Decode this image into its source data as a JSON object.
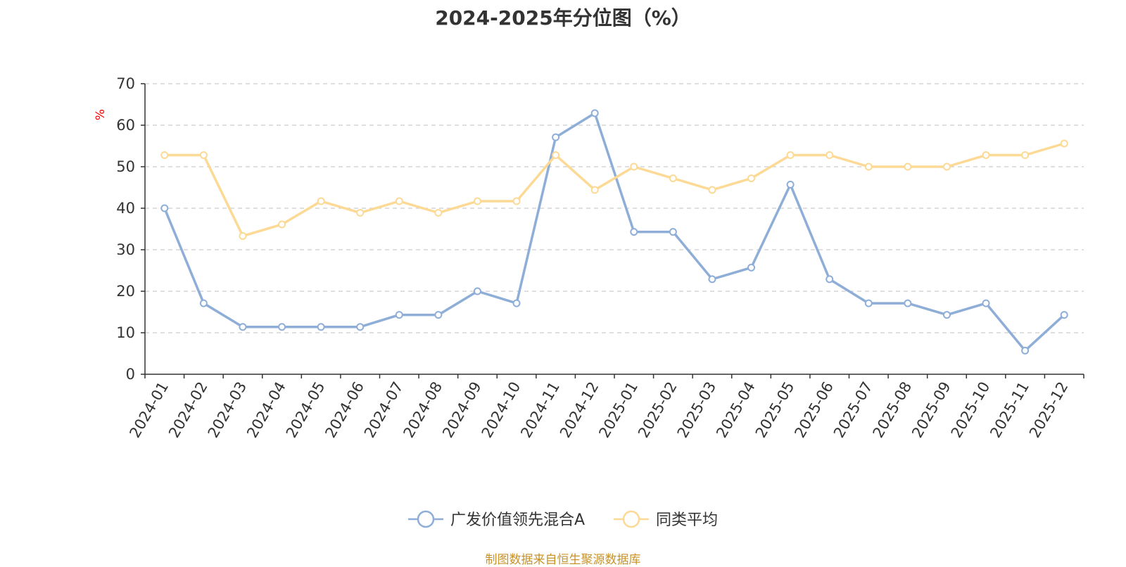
{
  "chart_data": {
    "type": "line",
    "title": "2024-2025年分位图（%）",
    "ylabel": "%",
    "xlabel": "",
    "ylim": [
      0,
      70
    ],
    "yticks": [
      0,
      10,
      20,
      30,
      40,
      50,
      60,
      70
    ],
    "grid": true,
    "legend_position": "bottom-center",
    "categories": [
      "2024-01",
      "2024-02",
      "2024-03",
      "2024-04",
      "2024-05",
      "2024-06",
      "2024-07",
      "2024-08",
      "2024-09",
      "2024-10",
      "2024-11",
      "2024-12",
      "2025-01",
      "2025-02",
      "2025-03",
      "2025-04",
      "2025-05",
      "2025-06",
      "2025-07",
      "2025-08",
      "2025-09",
      "2025-10",
      "2025-11",
      "2025-12"
    ],
    "series": [
      {
        "name": "广发价值领先混合A",
        "color": "#8eaed8",
        "values": [
          40,
          17.1,
          11.4,
          11.4,
          11.4,
          11.4,
          14.3,
          14.3,
          20,
          17.1,
          57.1,
          62.9,
          34.3,
          34.3,
          22.9,
          25.7,
          45.7,
          22.9,
          17.1,
          17.1,
          14.3,
          17.1,
          5.7,
          14.3
        ]
      },
      {
        "name": "同类平均",
        "color": "#fcd994",
        "values": [
          52.8,
          52.8,
          33.3,
          36.1,
          41.7,
          38.9,
          41.7,
          38.9,
          41.7,
          41.7,
          52.8,
          44.4,
          50,
          47.2,
          44.4,
          47.2,
          52.8,
          52.8,
          50,
          50,
          50,
          52.8,
          52.8,
          55.6
        ]
      }
    ]
  },
  "source_note": "制图数据来自恒生聚源数据库",
  "colors": {
    "axis": "#333333",
    "grid": "#cccccc",
    "ylabel": "#ff0000",
    "note": "#c8922a"
  }
}
